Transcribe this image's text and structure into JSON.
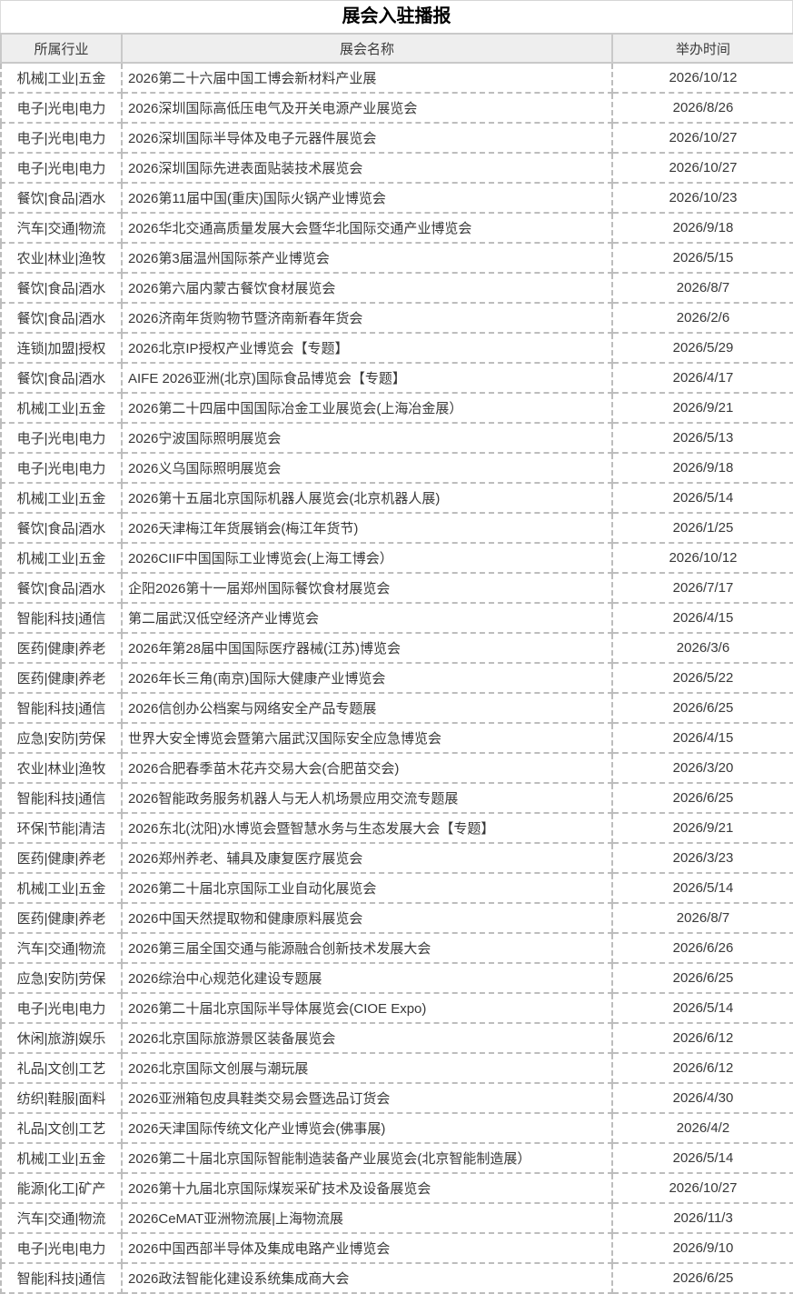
{
  "title": "展会入驻播报",
  "colors": {
    "header_bg": "#eeeeee",
    "border_solid": "#c9c9c9",
    "border_dashed": "#bdbdbd",
    "text": "#383838",
    "title_text": "#000000"
  },
  "table": {
    "headers": [
      "所属行业",
      "展会名称",
      "举办时间"
    ],
    "rows": [
      {
        "industry": "机械|工业|五金",
        "name": "2026第二十六届中国工博会新材料产业展",
        "date": "2026/10/12"
      },
      {
        "industry": "电子|光电|电力",
        "name": "2026深圳国际高低压电气及开关电源产业展览会",
        "date": "2026/8/26"
      },
      {
        "industry": "电子|光电|电力",
        "name": "2026深圳国际半导体及电子元器件展览会",
        "date": "2026/10/27"
      },
      {
        "industry": "电子|光电|电力",
        "name": "2026深圳国际先进表面贴装技术展览会",
        "date": "2026/10/27"
      },
      {
        "industry": "餐饮|食品|酒水",
        "name": "2026第11届中国(重庆)国际火锅产业博览会",
        "date": "2026/10/23"
      },
      {
        "industry": "汽车|交通|物流",
        "name": "2026华北交通高质量发展大会暨华北国际交通产业博览会",
        "date": "2026/9/18"
      },
      {
        "industry": "农业|林业|渔牧",
        "name": "2026第3届温州国际茶产业博览会",
        "date": "2026/5/15"
      },
      {
        "industry": "餐饮|食品|酒水",
        "name": "2026第六届内蒙古餐饮食材展览会",
        "date": "2026/8/7"
      },
      {
        "industry": "餐饮|食品|酒水",
        "name": "2026济南年货购物节暨济南新春年货会",
        "date": "2026/2/6"
      },
      {
        "industry": "连锁|加盟|授权",
        "name": "2026北京IP授权产业博览会【专题】",
        "date": "2026/5/29"
      },
      {
        "industry": "餐饮|食品|酒水",
        "name": "AIFE 2026亚洲(北京)国际食品博览会【专题】",
        "date": "2026/4/17"
      },
      {
        "industry": "机械|工业|五金",
        "name": "2026第二十四届中国国际冶金工业展览会(上海冶金展）",
        "date": "2026/9/21"
      },
      {
        "industry": "电子|光电|电力",
        "name": "2026宁波国际照明展览会",
        "date": "2026/5/13"
      },
      {
        "industry": "电子|光电|电力",
        "name": "2026义乌国际照明展览会",
        "date": "2026/9/18"
      },
      {
        "industry": "机械|工业|五金",
        "name": "2026第十五届北京国际机器人展览会(北京机器人展)",
        "date": "2026/5/14"
      },
      {
        "industry": "餐饮|食品|酒水",
        "name": "2026天津梅江年货展销会(梅江年货节)",
        "date": "2026/1/25"
      },
      {
        "industry": "机械|工业|五金",
        "name": "2026CIIF中国国际工业博览会(上海工博会）",
        "date": "2026/10/12"
      },
      {
        "industry": "餐饮|食品|酒水",
        "name": "企阳2026第十一届郑州国际餐饮食材展览会",
        "date": "2026/7/17"
      },
      {
        "industry": "智能|科技|通信",
        "name": "第二届武汉低空经济产业博览会",
        "date": "2026/4/15"
      },
      {
        "industry": "医药|健康|养老",
        "name": "2026年第28届中国国际医疗器械(江苏)博览会",
        "date": "2026/3/6"
      },
      {
        "industry": "医药|健康|养老",
        "name": "2026年长三角(南京)国际大健康产业博览会",
        "date": "2026/5/22"
      },
      {
        "industry": "智能|科技|通信",
        "name": "2026信创办公档案与网络安全产品专题展",
        "date": "2026/6/25"
      },
      {
        "industry": "应急|安防|劳保",
        "name": "世界大安全博览会暨第六届武汉国际安全应急博览会",
        "date": "2026/4/15"
      },
      {
        "industry": "农业|林业|渔牧",
        "name": "2026合肥春季苗木花卉交易大会(合肥苗交会)",
        "date": "2026/3/20"
      },
      {
        "industry": "智能|科技|通信",
        "name": "2026智能政务服务机器人与无人机场景应用交流专题展",
        "date": "2026/6/25"
      },
      {
        "industry": "环保|节能|清洁",
        "name": "2026东北(沈阳)水博览会暨智慧水务与生态发展大会【专题】",
        "date": "2026/9/21"
      },
      {
        "industry": "医药|健康|养老",
        "name": "2026郑州养老、辅具及康复医疗展览会",
        "date": "2026/3/23"
      },
      {
        "industry": "机械|工业|五金",
        "name": "2026第二十届北京国际工业自动化展览会",
        "date": "2026/5/14"
      },
      {
        "industry": "医药|健康|养老",
        "name": "2026中国天然提取物和健康原料展览会",
        "date": "2026/8/7"
      },
      {
        "industry": "汽车|交通|物流",
        "name": "2026第三届全国交通与能源融合创新技术发展大会",
        "date": "2026/6/26"
      },
      {
        "industry": "应急|安防|劳保",
        "name": "2026综治中心规范化建设专题展",
        "date": "2026/6/25"
      },
      {
        "industry": "电子|光电|电力",
        "name": "2026第二十届北京国际半导体展览会(CIOE Expo)",
        "date": "2026/5/14"
      },
      {
        "industry": "休闲|旅游|娱乐",
        "name": "2026北京国际旅游景区装备展览会",
        "date": "2026/6/12"
      },
      {
        "industry": "礼品|文创|工艺",
        "name": "2026北京国际文创展与潮玩展",
        "date": "2026/6/12"
      },
      {
        "industry": "纺织|鞋服|面料",
        "name": "2026亚洲箱包皮具鞋类交易会暨选品订货会",
        "date": "2026/4/30"
      },
      {
        "industry": "礼品|文创|工艺",
        "name": "2026天津国际传统文化产业博览会(佛事展)",
        "date": "2026/4/2"
      },
      {
        "industry": "机械|工业|五金",
        "name": "2026第二十届北京国际智能制造装备产业展览会(北京智能制造展）",
        "date": "2026/5/14"
      },
      {
        "industry": "能源|化工|矿产",
        "name": "2026第十九届北京国际煤炭采矿技术及设备展览会",
        "date": "2026/10/27"
      },
      {
        "industry": "汽车|交通|物流",
        "name": "2026CeMAT亚洲物流展|上海物流展",
        "date": "2026/11/3"
      },
      {
        "industry": "电子|光电|电力",
        "name": "2026中国西部半导体及集成电路产业博览会",
        "date": "2026/9/10"
      },
      {
        "industry": "智能|科技|通信",
        "name": "2026政法智能化建设系统集成商大会",
        "date": "2026/6/25"
      }
    ]
  }
}
